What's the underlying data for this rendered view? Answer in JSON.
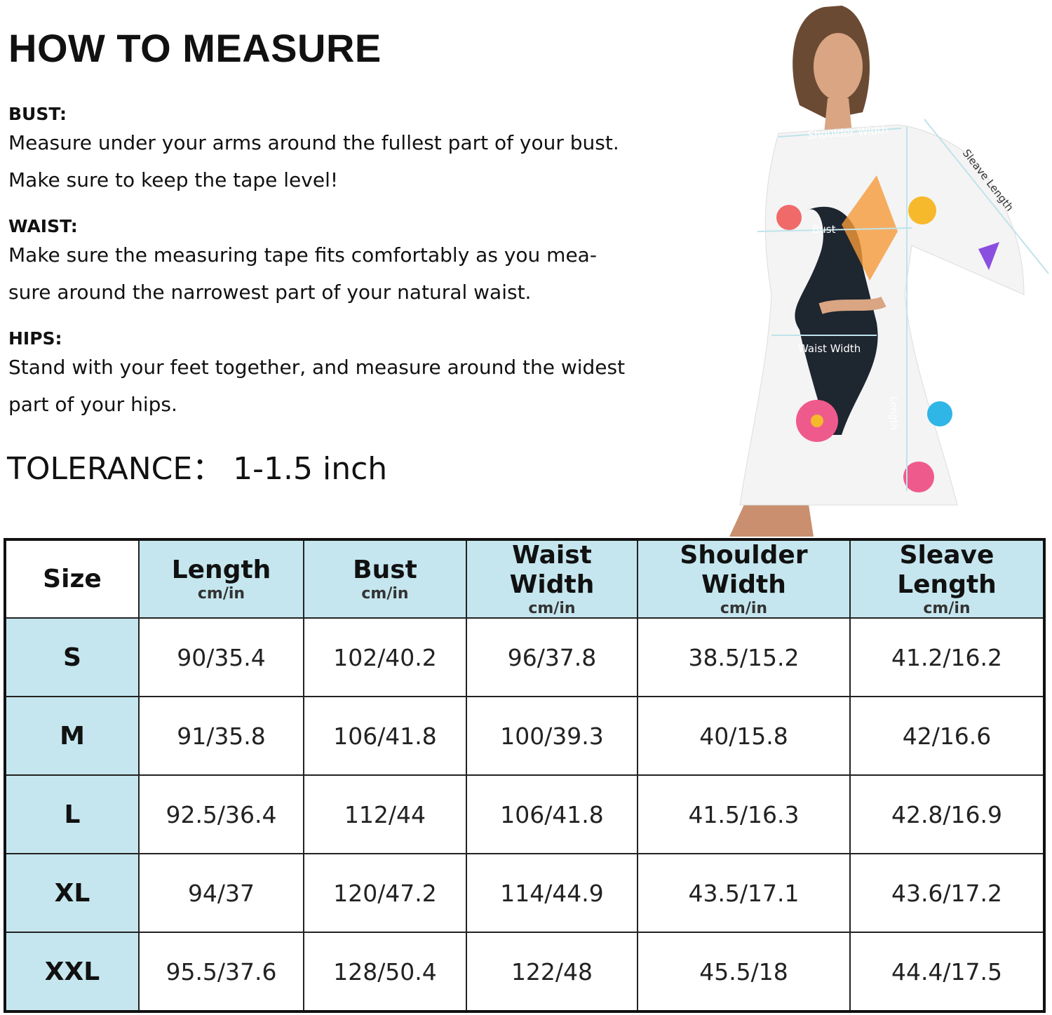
{
  "title": "HOW TO MEASURE",
  "instructions": [
    {
      "label": "BUST:",
      "lines": [
        "Measure under your arms around the fullest part of your bust.",
        "Make sure to keep the tape level!"
      ]
    },
    {
      "label": "WAIST:",
      "lines": [
        "Make sure the measuring tape fits comfortably as you mea-",
        "sure around the narrowest part of your natural waist."
      ]
    },
    {
      "label": "HIPS:",
      "lines": [
        "Stand with your feet together, and measure around the widest",
        "part of your hips."
      ]
    }
  ],
  "tolerance": "TOLERANCE：  1-1.5 inch",
  "figure_labels": {
    "shoulder": "Shoulder Width",
    "sleeve": "Sleave Length",
    "bust": "Bust",
    "waist": "Waist Width",
    "length": "Length"
  },
  "table": {
    "headers": [
      {
        "name": "Size",
        "unit": ""
      },
      {
        "name": "Length",
        "unit": "cm/in"
      },
      {
        "name": "Bust",
        "unit": "cm/in"
      },
      {
        "name": "Waist Width",
        "unit": "cm/in"
      },
      {
        "name": "Shoulder Width",
        "unit": "cm/in"
      },
      {
        "name": "Sleave Length",
        "unit": "cm/in"
      }
    ],
    "rows": [
      [
        "S",
        "90/35.4",
        "102/40.2",
        "96/37.8",
        "38.5/15.2",
        "41.2/16.2"
      ],
      [
        "M",
        "91/35.8",
        "106/41.8",
        "100/39.3",
        "40/15.8",
        "42/16.6"
      ],
      [
        "L",
        "92.5/36.4",
        "112/44",
        "106/41.8",
        "41.5/16.3",
        "42.8/16.9"
      ],
      [
        "XL",
        "94/37",
        "120/47.2",
        "114/44.9",
        "43.5/17.1",
        "43.6/17.2"
      ],
      [
        "XXL",
        "95.5/37.6",
        "128/50.4",
        "122/48",
        "45.5/18",
        "44.4/17.5"
      ]
    ]
  },
  "colors": {
    "header_bg": "#c5e6ee",
    "border": "#111111"
  }
}
